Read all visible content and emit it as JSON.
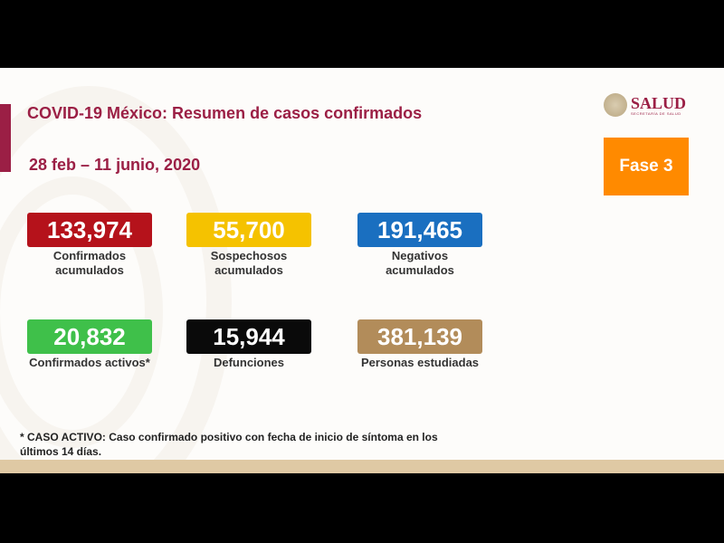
{
  "header": {
    "title": "COVID-19 México: Resumen de casos confirmados",
    "date_range": "28 feb – 11 junio, 2020",
    "logo_text": "SALUD",
    "logo_subtext": "SECRETARÍA DE SALUD",
    "phase": "Fase 3"
  },
  "cards": [
    {
      "value": "133,974",
      "label": "Confirmados acumulados",
      "color": "#b5121b"
    },
    {
      "value": "55,700",
      "label": "Sospechosos acumulados",
      "color": "#f5c200"
    },
    {
      "value": "191,465",
      "label": "Negativos acumulados",
      "color": "#1a6fc0"
    },
    {
      "value": "20,832",
      "label": "Confirmados activos*",
      "color": "#3fc04a"
    },
    {
      "value": "15,944",
      "label": "Defunciones",
      "color": "#0a0a0a"
    },
    {
      "value": "381,139",
      "label": "Personas estudiadas",
      "color": "#b28c5a"
    }
  ],
  "footnote": "* CASO ACTIVO: Caso confirmado positivo con fecha de inicio de síntoma en los últimos 14 días."
}
